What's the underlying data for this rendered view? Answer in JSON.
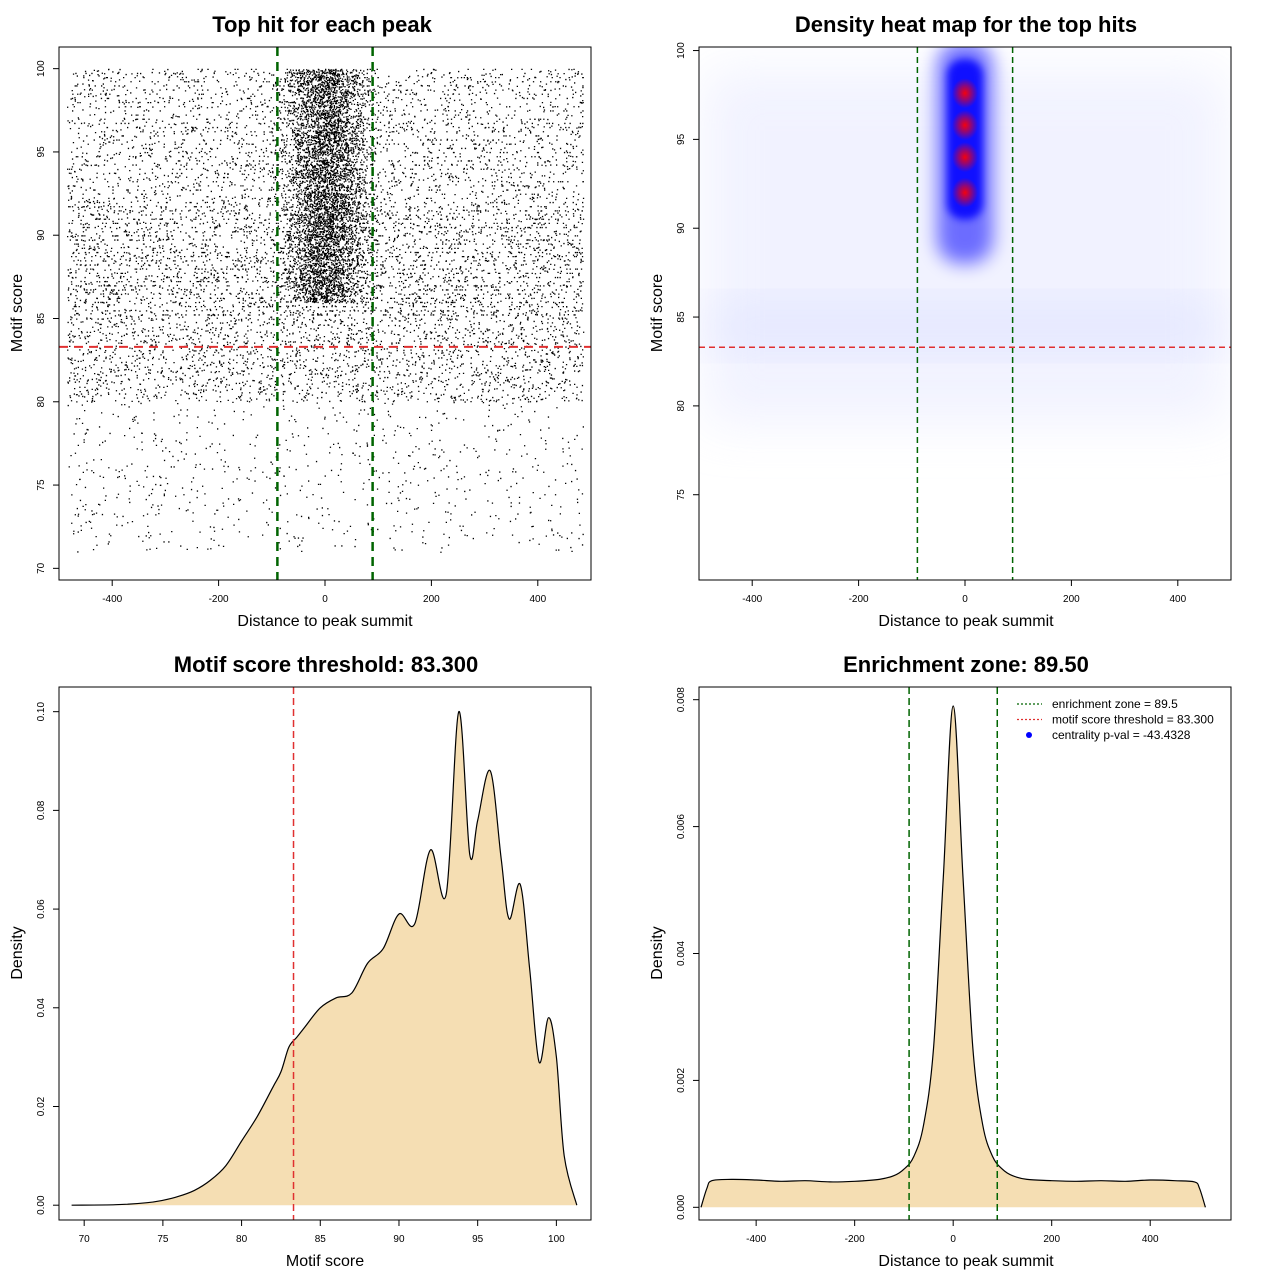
{
  "chart_data": [
    {
      "type": "scatter",
      "title": "Top hit for each peak",
      "xlabel": "Distance to peak summit",
      "ylabel": "Motif score",
      "xlim": [
        -500,
        500
      ],
      "ylim": [
        69.3,
        101.3
      ],
      "xticks": [
        -400,
        -200,
        0,
        200,
        400
      ],
      "yticks": [
        70,
        75,
        80,
        85,
        90,
        95,
        100
      ],
      "vlines": [
        -89.5,
        89.5
      ],
      "hline": 83.3,
      "vline_color": "#006400",
      "hline_color": "#e03030",
      "point_color": "#000000"
    },
    {
      "type": "heatmap",
      "title": "Density heat map for the top hits",
      "xlabel": "Distance to peak summit",
      "ylabel": "Motif score",
      "xlim": [
        -500,
        500
      ],
      "ylim": [
        70.2,
        100.2
      ],
      "xticks": [
        -400,
        -200,
        0,
        200,
        400
      ],
      "yticks": [
        75,
        80,
        85,
        90,
        95,
        100
      ],
      "vlines": [
        -89.5,
        89.5
      ],
      "hline": 83.3,
      "hotspots_y": [
        92.0,
        94.0,
        95.8,
        97.6
      ],
      "low_color": "#ffffff",
      "mid_color": "#0000ff",
      "high_color": "#ff0000"
    },
    {
      "type": "area",
      "title": "Motif score threshold: 83.300",
      "xlabel": "Motif score",
      "ylabel": "Density",
      "xlim": [
        68.4,
        102.2
      ],
      "ylim": [
        -0.003,
        0.105
      ],
      "xticks": [
        70,
        75,
        80,
        85,
        90,
        95,
        100
      ],
      "yticks": [
        0.0,
        0.02,
        0.04,
        0.06,
        0.08,
        0.1
      ],
      "ytick_labels": [
        "0.00",
        "0.02",
        "0.04",
        "0.06",
        "0.08",
        "0.10"
      ],
      "vline": 83.3,
      "fill_color": "#f5deb3",
      "x": [
        69.2,
        72,
        74,
        75,
        76,
        77,
        78,
        79,
        80,
        81,
        82,
        82.5,
        83,
        83.5,
        84,
        85,
        86,
        87,
        88,
        89,
        90,
        91,
        92,
        93,
        93.8,
        94.5,
        95,
        95.8,
        96.5,
        97,
        97.7,
        98.3,
        98.9,
        99.5,
        100,
        100.5,
        101.3
      ],
      "y": [
        0.0,
        0.0001,
        0.0005,
        0.001,
        0.0018,
        0.003,
        0.005,
        0.008,
        0.013,
        0.018,
        0.024,
        0.027,
        0.032,
        0.034,
        0.036,
        0.04,
        0.042,
        0.043,
        0.049,
        0.052,
        0.059,
        0.057,
        0.072,
        0.063,
        0.1,
        0.071,
        0.078,
        0.088,
        0.07,
        0.058,
        0.065,
        0.048,
        0.029,
        0.038,
        0.03,
        0.01,
        0.0
      ]
    },
    {
      "type": "area",
      "title": "Enrichment zone: 89.50",
      "xlabel": "Distance to peak summit",
      "ylabel": "Density",
      "xlim": [
        -516,
        564
      ],
      "ylim": [
        -0.0002,
        0.0082
      ],
      "xticks": [
        -400,
        -200,
        0,
        200,
        400
      ],
      "yticks": [
        0.0,
        0.002,
        0.004,
        0.006,
        0.008
      ],
      "ytick_labels": [
        "0.000",
        "0.002",
        "0.004",
        "0.006",
        "0.008"
      ],
      "vlines": [
        -89.5,
        89.5
      ],
      "fill_color": "#f5deb3",
      "x": [
        -512,
        -500,
        -490,
        -450,
        -400,
        -350,
        -300,
        -250,
        -200,
        -150,
        -120,
        -100,
        -80,
        -60,
        -40,
        -20,
        0,
        20,
        40,
        60,
        80,
        100,
        120,
        150,
        200,
        250,
        300,
        350,
        400,
        450,
        490,
        500,
        512
      ],
      "y": [
        0.0,
        0.0003,
        0.00042,
        0.00044,
        0.00043,
        0.00041,
        0.00042,
        0.0004,
        0.00041,
        0.00044,
        0.0005,
        0.0006,
        0.0008,
        0.0013,
        0.0025,
        0.0052,
        0.0079,
        0.0052,
        0.0025,
        0.0013,
        0.0008,
        0.0006,
        0.0005,
        0.00044,
        0.00042,
        0.00041,
        0.00042,
        0.00041,
        0.00043,
        0.00042,
        0.0004,
        0.0003,
        0.0
      ],
      "legend": [
        {
          "label": "enrichment zone = 89.5",
          "color": "#006400",
          "style": "dotted"
        },
        {
          "label": "motif score threshold = 83.300",
          "color": "#e03030",
          "style": "dotted"
        },
        {
          "label": "centrality p-val = -43.4328",
          "color": "#0000ff",
          "style": "point"
        }
      ],
      "legend_position": "top-right"
    }
  ]
}
